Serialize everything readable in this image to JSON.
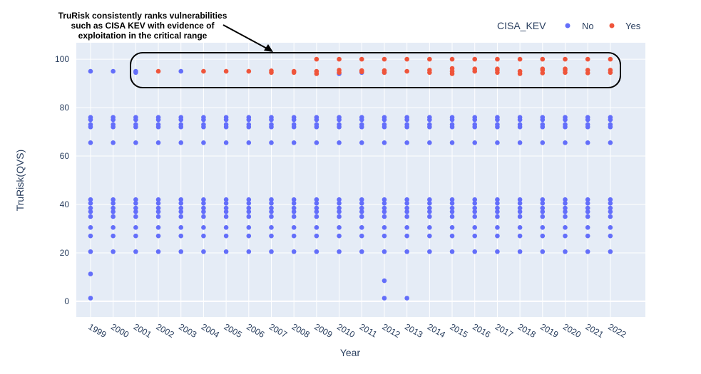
{
  "chart_data": {
    "type": "scatter",
    "xlabel": "Year",
    "ylabel": "TruRisk(QVS)",
    "xlim": [
      1998.37,
      2023.55
    ],
    "ylim": [
      -6.5,
      106.8
    ],
    "x_ticks": [
      "1999",
      "2000",
      "2001",
      "2002",
      "2003",
      "2004",
      "2005",
      "2006",
      "2007",
      "2008",
      "2009",
      "2010",
      "2011",
      "2012",
      "2013",
      "2014",
      "2015",
      "2016",
      "2017",
      "2018",
      "2019",
      "2020",
      "2021",
      "2022"
    ],
    "y_ticks": [
      0,
      20,
      40,
      60,
      80,
      100
    ],
    "grid": true,
    "legend": {
      "title": "CISA_KEV",
      "placement": "top-right"
    },
    "series": [
      {
        "name": "No",
        "color": "#636efa",
        "base_values": [
          20.5,
          27,
          30.5,
          35,
          37,
          38.5,
          40.5,
          42,
          65.5,
          72,
          73,
          75,
          76
        ],
        "extra_points": [
          {
            "x": 1999,
            "y": 95
          },
          {
            "x": 1999,
            "y": 11.3
          },
          {
            "x": 1999,
            "y": 1.3
          },
          {
            "x": 2000,
            "y": 95
          },
          {
            "x": 2001,
            "y": 95
          },
          {
            "x": 2001,
            "y": 94.5
          },
          {
            "x": 2003,
            "y": 95
          },
          {
            "x": 2010,
            "y": 94
          },
          {
            "x": 2011,
            "y": 94.5
          },
          {
            "x": 2012,
            "y": 94.5
          },
          {
            "x": 2012,
            "y": 8.5
          },
          {
            "x": 2012,
            "y": 1.3
          },
          {
            "x": 2013,
            "y": 1.3
          }
        ]
      },
      {
        "name": "Yes",
        "color": "#ef553b",
        "points_by_year": {
          "2002": [
            95
          ],
          "2004": [
            95
          ],
          "2005": [
            95
          ],
          "2006": [
            95
          ],
          "2007": [
            94.5,
            95.2
          ],
          "2008": [
            94.5,
            95
          ],
          "2009": [
            100,
            94,
            95
          ],
          "2010": [
            100,
            94.5,
            95.5
          ],
          "2011": [
            100,
            94.8,
            95.3
          ],
          "2012": [
            100,
            94.5,
            95.3
          ],
          "2013": [
            100,
            95
          ],
          "2014": [
            100,
            94.5,
            95.5
          ],
          "2015": [
            100,
            94,
            95,
            96.2
          ],
          "2016": [
            100,
            95,
            96
          ],
          "2017": [
            100,
            94.5,
            95.5,
            96
          ],
          "2018": [
            100,
            94,
            95
          ],
          "2019": [
            100,
            94.3,
            95.5,
            96
          ],
          "2020": [
            100,
            94.5,
            95.5,
            96
          ],
          "2021": [
            100,
            94.3,
            95.5
          ],
          "2022": [
            100,
            94.5,
            95.5
          ]
        }
      }
    ],
    "annotation": {
      "lines": [
        "TruRisk consistently ranks vulnerabilities",
        "such as CISA KEV with evidence of",
        "exploitation in the critical range"
      ]
    }
  }
}
